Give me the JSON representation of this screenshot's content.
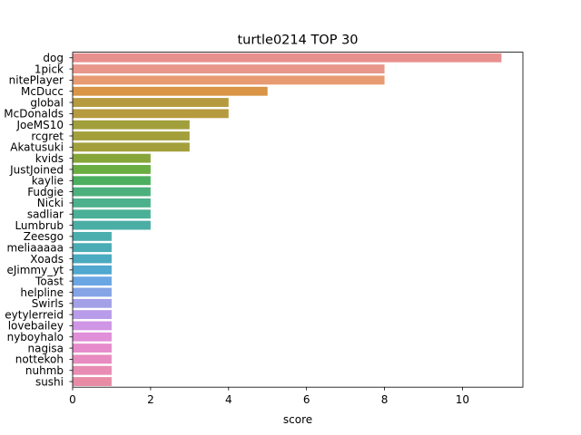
{
  "chart_data": {
    "type": "bar",
    "orientation": "horizontal",
    "title": "turtle0214 TOP 30",
    "xlabel": "score",
    "ylabel": "",
    "xlim": [
      0,
      11.55
    ],
    "xticks": [
      0,
      2,
      4,
      6,
      8,
      10
    ],
    "grid": false,
    "legend": "none",
    "categories": [
      "dog",
      "1pick",
      "nitePlayer",
      "McDucc",
      "global",
      "McDonalds",
      "JoeMS10",
      "rcgret",
      "Akatusuki",
      "kvids",
      "JustJoined",
      "kaylie",
      "Fudgie",
      "Nicki",
      "sadliar",
      "Lumbrub",
      "Zeesgo\u0001",
      "meliaaaaa",
      "Xoads",
      "eJimmy_yt",
      "Toast",
      "helpline",
      "Swirls",
      "eytylerreid",
      "lovebailey",
      "nyboyhalo",
      "nagisa",
      "nottekoh",
      "nuhmb",
      "sushi"
    ],
    "values": [
      11,
      8,
      8,
      5,
      4,
      4,
      3,
      3,
      3,
      2,
      2,
      2,
      2,
      2,
      2,
      2,
      1,
      1,
      1,
      1,
      1,
      1,
      1,
      1,
      1,
      1,
      1,
      1,
      1,
      1
    ],
    "colors": [
      "#e8908e",
      "#e8978a",
      "#e89a72",
      "#d99445",
      "#b69a3f",
      "#b69a3f",
      "#a19f3b",
      "#a3a03c",
      "#a3a03c",
      "#86a63a",
      "#6aae42",
      "#4caf5f",
      "#4cb07c",
      "#4cb18d",
      "#4bb098",
      "#4aaea5",
      "#4aadae",
      "#4aacb5",
      "#4aaabf",
      "#50a7cf",
      "#6aa5e4",
      "#84a4e6",
      "#a3a0e8",
      "#b89ce9",
      "#cf95e6",
      "#e08fd8",
      "#e68ccd",
      "#e88bc0",
      "#e88cb4",
      "#e88ca6"
    ]
  }
}
